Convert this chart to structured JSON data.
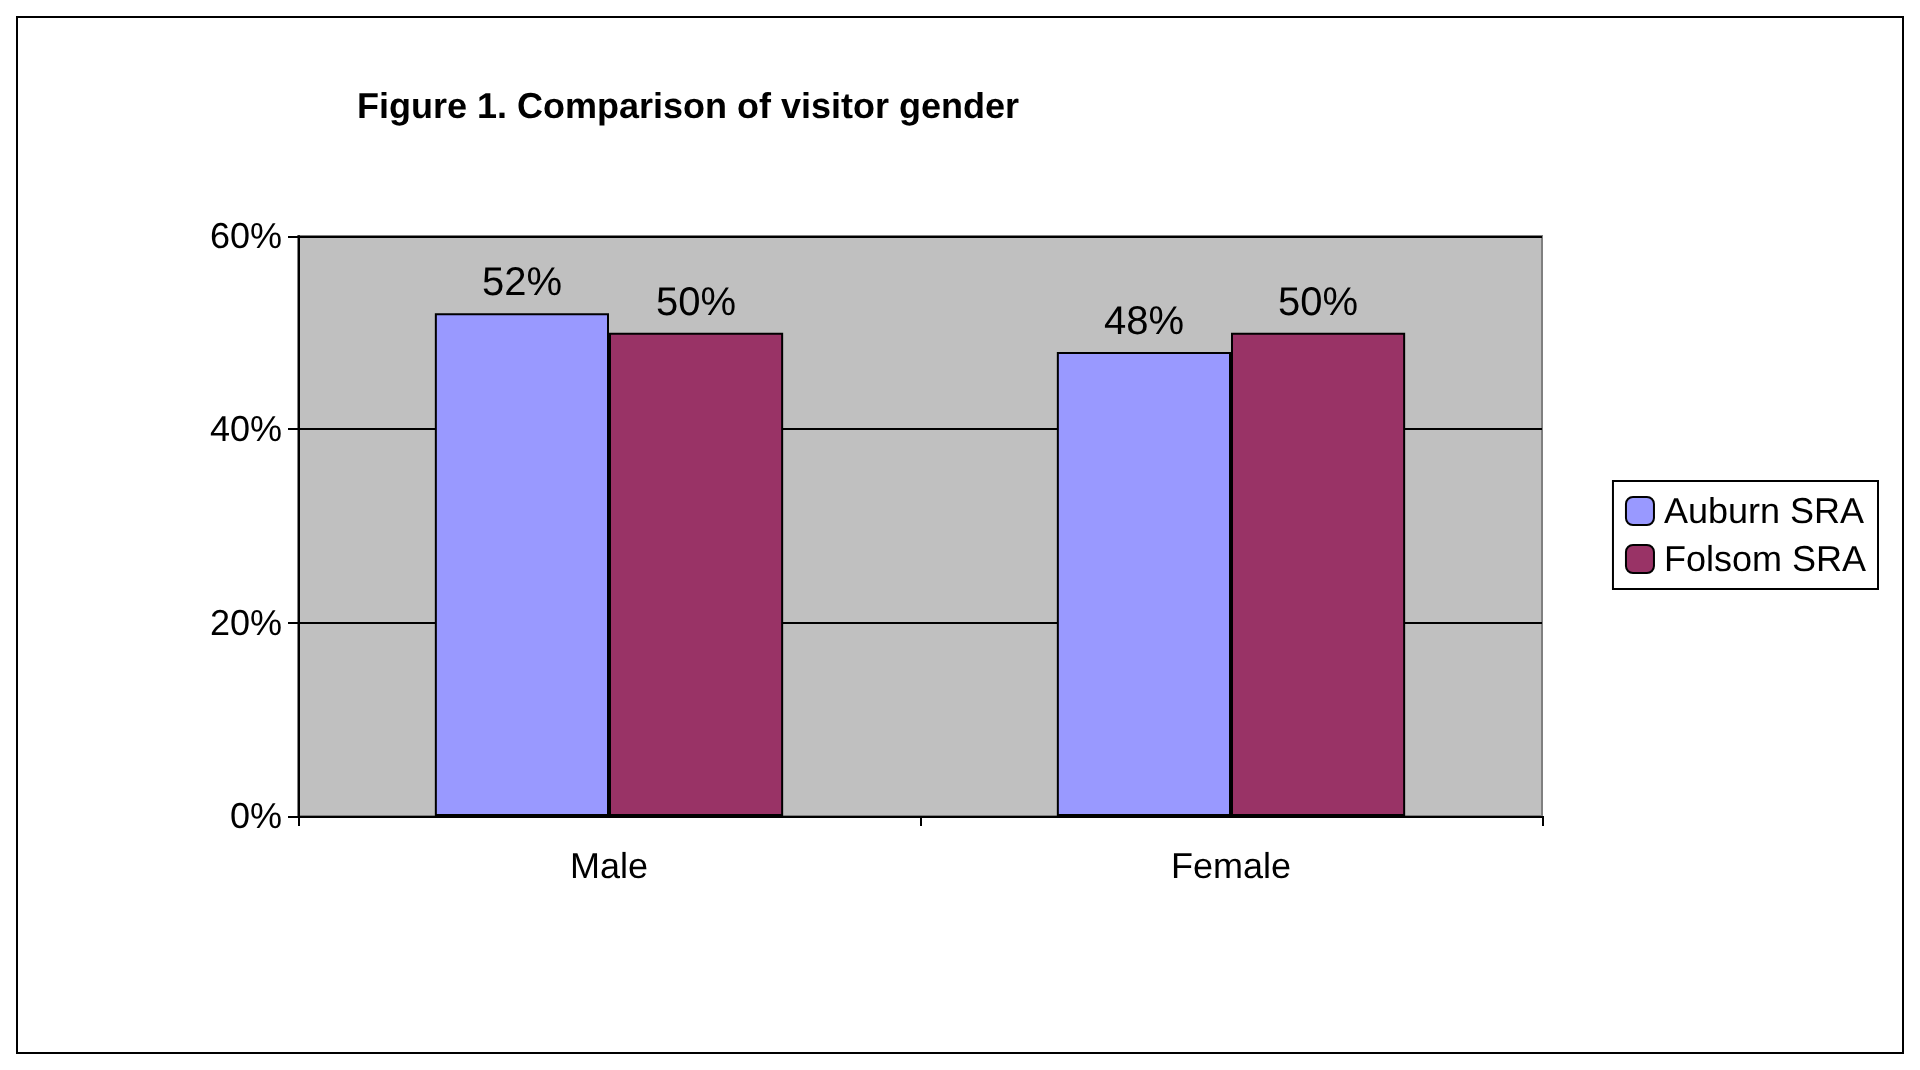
{
  "chart_data": {
    "type": "bar",
    "title": "Figure 1. Comparison of visitor gender",
    "categories": [
      "Male",
      "Female"
    ],
    "series": [
      {
        "name": "Auburn SRA",
        "color": "#9999ff",
        "values": [
          52,
          48
        ],
        "value_labels": [
          "52%",
          "48%"
        ]
      },
      {
        "name": "Folsom SRA",
        "color": "#993366",
        "values": [
          50,
          50
        ],
        "value_labels": [
          "50%",
          "50%"
        ]
      }
    ],
    "ylim": [
      0,
      60
    ],
    "yticks": [
      {
        "value": 0,
        "label": "0%"
      },
      {
        "value": 20,
        "label": "20%"
      },
      {
        "value": 40,
        "label": "40%"
      },
      {
        "value": 60,
        "label": "60%"
      }
    ],
    "grid": "y",
    "legend": "right"
  }
}
